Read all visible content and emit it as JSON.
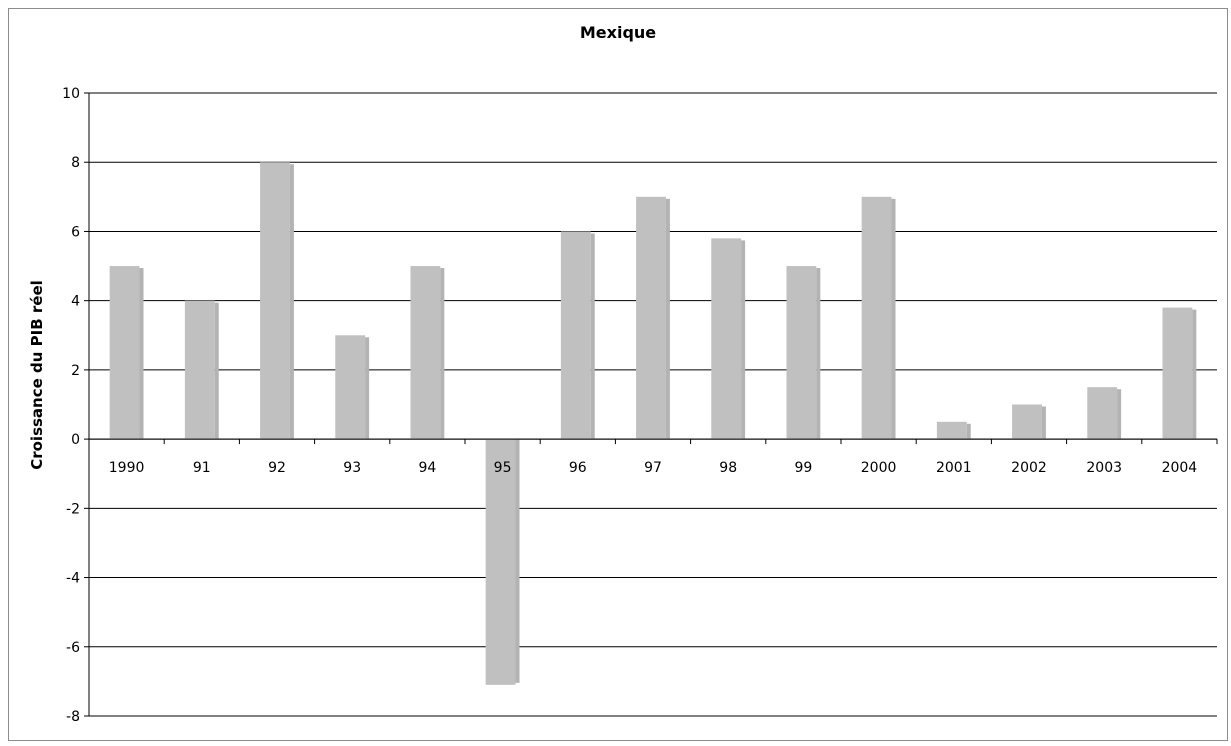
{
  "chart_data": {
    "type": "bar",
    "title": "Mexique",
    "xlabel": "",
    "ylabel": "Croissance du PIB réel",
    "categories": [
      "1990",
      "91",
      "92",
      "93",
      "94",
      "95",
      "96",
      "97",
      "98",
      "99",
      "2000",
      "2001",
      "2002",
      "2003",
      "2004"
    ],
    "values": [
      5.0,
      4.0,
      8.0,
      3.0,
      5.0,
      -7.1,
      6.0,
      7.0,
      5.8,
      5.0,
      7.0,
      0.5,
      1.0,
      1.5,
      3.8
    ],
    "ylim": [
      -8,
      10
    ],
    "yticks": [
      "-8",
      "-6",
      "-4",
      "-2",
      "0",
      "2",
      "4",
      "6",
      "8",
      "10"
    ],
    "grid": true,
    "legend": "none",
    "bar_color": "#c0c0c0"
  }
}
